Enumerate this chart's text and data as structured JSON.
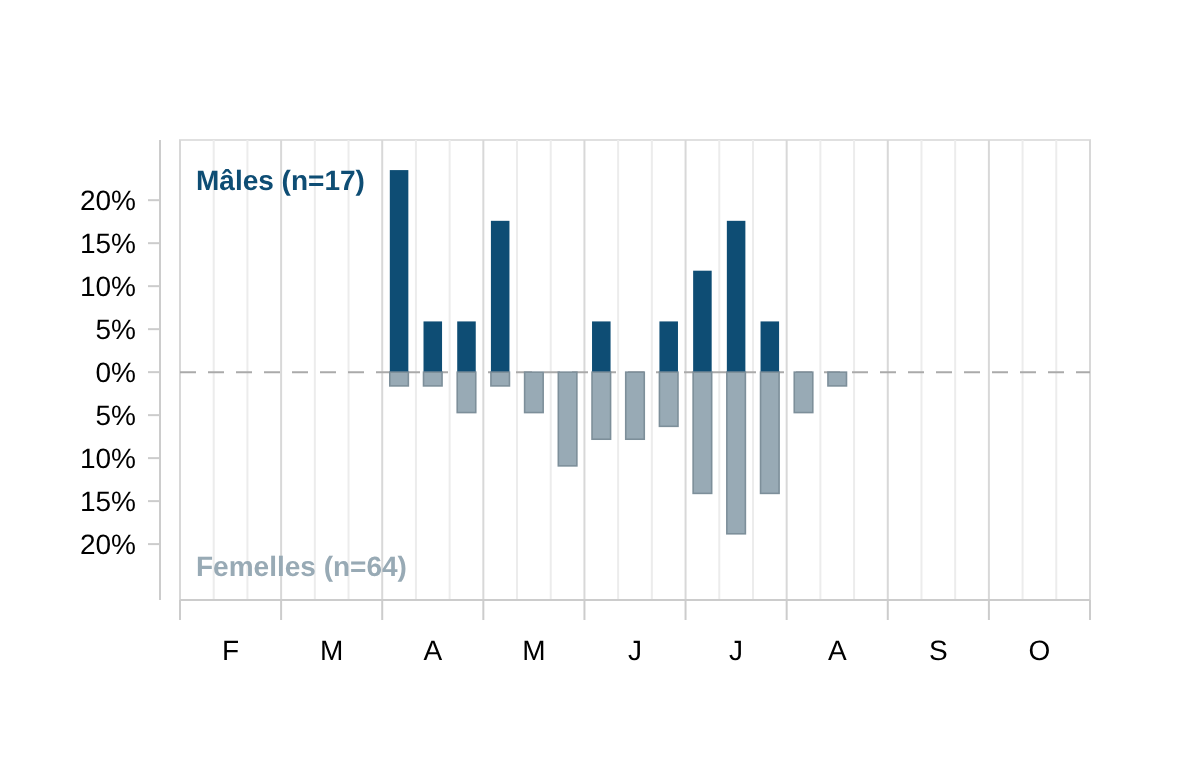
{
  "chart_data": {
    "type": "bar",
    "categories": [
      null,
      "F",
      null,
      null,
      "M",
      null,
      null,
      "A",
      null,
      null,
      "M",
      null,
      null,
      "J",
      null,
      null,
      "J",
      null,
      null,
      "A",
      null,
      null,
      "S",
      null,
      null,
      "O",
      null
    ],
    "series": [
      {
        "name": "Mâles (n=17)",
        "color": "#0e4d74",
        "values": [
          null,
          null,
          null,
          null,
          null,
          null,
          23.5,
          5.9,
          5.9,
          17.6,
          null,
          null,
          5.9,
          null,
          5.9,
          11.8,
          17.6,
          5.9,
          null,
          null,
          null,
          null,
          null,
          null,
          null,
          null,
          null
        ]
      },
      {
        "name": "Femelles (n=64)",
        "color": "#98aab5",
        "values": [
          null,
          null,
          null,
          null,
          null,
          null,
          -1.6,
          -1.6,
          -4.7,
          -1.6,
          -4.7,
          -10.9,
          -7.8,
          -7.8,
          -6.3,
          -14.1,
          -18.8,
          -14.1,
          -4.7,
          -1.6,
          null,
          null,
          null,
          null,
          null,
          null,
          null
        ]
      }
    ],
    "ylim": [
      -26.5,
      27
    ],
    "yticks": [
      {
        "value": 20,
        "label": "20%"
      },
      {
        "value": 15,
        "label": "15%"
      },
      {
        "value": 10,
        "label": "10%"
      },
      {
        "value": 5,
        "label": "5%"
      },
      {
        "value": 0,
        "label": "0%"
      },
      {
        "value": -5,
        "label": "5%"
      },
      {
        "value": -10,
        "label": "10%"
      },
      {
        "value": -15,
        "label": "15%"
      },
      {
        "value": -20,
        "label": "20%"
      }
    ],
    "grid": "x",
    "legend": "left",
    "ref_lines": [
      {
        "axis": "y",
        "value": 0,
        "color": "#aaaaaa",
        "line_style": "dashed"
      }
    ]
  }
}
